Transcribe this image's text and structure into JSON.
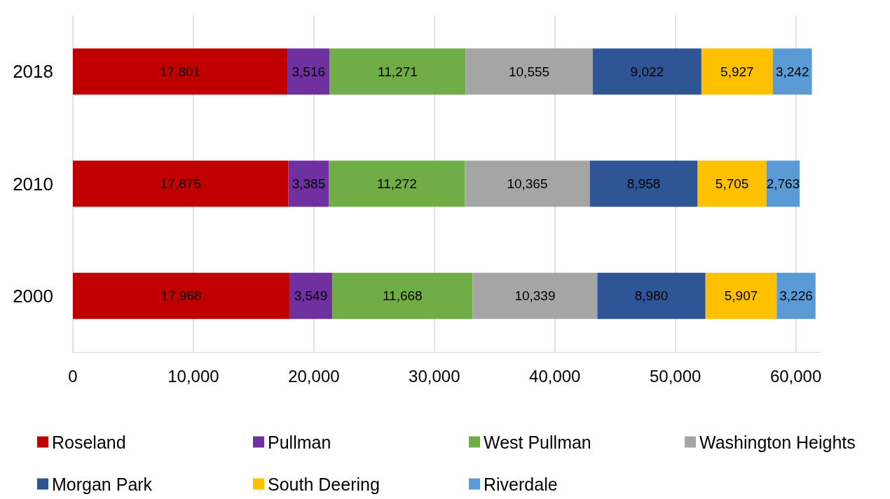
{
  "chart_data": {
    "type": "bar",
    "orientation": "horizontal",
    "stacked": true,
    "categories": [
      "2018",
      "2010",
      "2000"
    ],
    "series": [
      {
        "name": "Roseland",
        "color": "#c00000",
        "values": [
          17801,
          17875,
          17968
        ],
        "value_labels": [
          "17,801",
          "17,875",
          "17,968"
        ]
      },
      {
        "name": "Pullman",
        "color": "#7030a0",
        "values": [
          3516,
          3385,
          3549
        ],
        "value_labels": [
          "3,516",
          "3,385",
          "3,549"
        ]
      },
      {
        "name": "West Pullman",
        "color": "#70ad47",
        "values": [
          11271,
          11272,
          11668
        ],
        "value_labels": [
          "11,271",
          "11,272",
          "11,668"
        ]
      },
      {
        "name": "Washington Heights",
        "color": "#a5a5a5",
        "values": [
          10555,
          10365,
          10339
        ],
        "value_labels": [
          "10,555",
          "10,365",
          "10,339"
        ]
      },
      {
        "name": "Morgan Park",
        "color": "#2f5597",
        "values": [
          9022,
          8958,
          8980
        ],
        "value_labels": [
          "9,022",
          "8,958",
          "8,980"
        ]
      },
      {
        "name": "South Deering",
        "color": "#ffc000",
        "values": [
          5927,
          5705,
          5907
        ],
        "value_labels": [
          "5,927",
          "5,705",
          "5,907"
        ]
      },
      {
        "name": "Riverdale",
        "color": "#5b9bd5",
        "values": [
          3242,
          2763,
          3226
        ],
        "value_labels": [
          "3,242",
          "2,763",
          "3,226"
        ]
      }
    ],
    "xlim": [
      0,
      62000
    ],
    "xticks": [
      0,
      {
        "value": 10000,
        "label": "10,000"
      },
      {
        "value": 20000,
        "label": "20,000"
      },
      {
        "value": 30000,
        "label": "30,000"
      },
      {
        "value": 40000,
        "label": "40,000"
      },
      {
        "value": 50000,
        "label": "50,000"
      },
      {
        "value": 60000,
        "label": "60,000"
      }
    ],
    "grid": "x",
    "legend": "bottom"
  }
}
